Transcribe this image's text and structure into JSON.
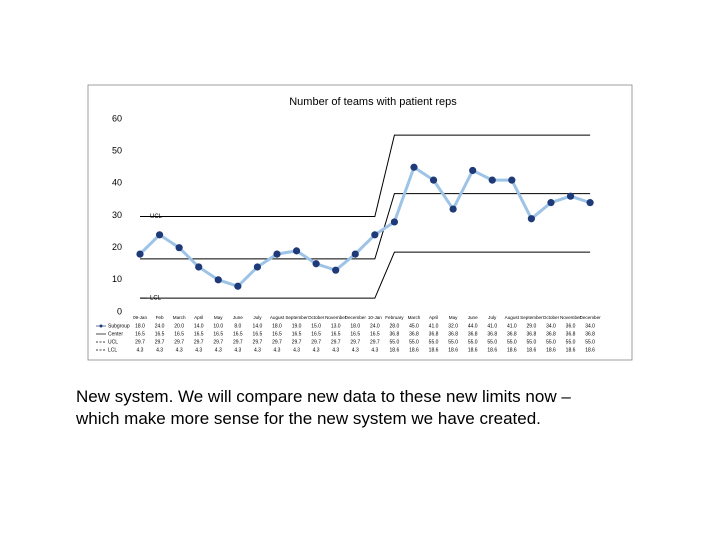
{
  "chart_data": {
    "type": "line",
    "title": "Number of teams with patient reps",
    "categories": [
      "09-Jan",
      "Feb",
      "March",
      "April",
      "May",
      "June",
      "July",
      "August",
      "September",
      "October",
      "November",
      "December",
      "10-Jan",
      "February",
      "March",
      "April",
      "May",
      "June",
      "July",
      "August",
      "September",
      "October",
      "November",
      "December"
    ],
    "series": [
      {
        "name": "Subgroup",
        "color": "#9dc3e6",
        "marker_color": "#1f3a78",
        "values": [
          18,
          24,
          20,
          14,
          10,
          8,
          14,
          18,
          19,
          15,
          13,
          18,
          24,
          28,
          45,
          41,
          32,
          44,
          41,
          41,
          29,
          34,
          36,
          34
        ],
        "value_labels": [
          "18.0",
          "24.0",
          "20.0",
          "14.0",
          "10.0",
          "8.0",
          "14.0",
          "18.0",
          "19.0",
          "15.0",
          "13.0",
          "18.0",
          "24.0",
          "28.0",
          "45.0",
          "41.0",
          "32.0",
          "44.0",
          "41.0",
          "41.0",
          "29.0",
          "34.0",
          "36.0",
          "34.0"
        ]
      },
      {
        "name": "Center",
        "color": "#000000",
        "values": [
          16.5,
          16.5,
          16.5,
          16.5,
          16.5,
          16.5,
          16.5,
          16.5,
          16.5,
          16.5,
          16.5,
          16.5,
          16.5,
          36.8,
          36.8,
          36.8,
          36.8,
          36.8,
          36.8,
          36.8,
          36.8,
          36.8,
          36.8,
          36.8
        ],
        "value_labels": [
          "16.5",
          "16.5",
          "16.5",
          "16.5",
          "16.5",
          "16.5",
          "16.5",
          "16.5",
          "16.5",
          "16.5",
          "16.5",
          "16.5",
          "16.5",
          "36.8",
          "36.8",
          "36.8",
          "36.8",
          "36.8",
          "36.8",
          "36.8",
          "36.8",
          "36.8",
          "36.8",
          "36.8"
        ]
      },
      {
        "name": "UCL",
        "color": "#000000",
        "values": [
          29.7,
          29.7,
          29.7,
          29.7,
          29.7,
          29.7,
          29.7,
          29.7,
          29.7,
          29.7,
          29.7,
          29.7,
          29.7,
          55,
          55,
          55,
          55,
          55,
          55,
          55,
          55,
          55,
          55,
          55
        ],
        "value_labels": [
          "29.7",
          "29.7",
          "29.7",
          "29.7",
          "29.7",
          "29.7",
          "29.7",
          "29.7",
          "29.7",
          "29.7",
          "29.7",
          "29.7",
          "29.7",
          "55.0",
          "55.0",
          "55.0",
          "55.0",
          "55.0",
          "55.0",
          "55.0",
          "55.0",
          "55.0",
          "55.0",
          "55.0"
        ]
      },
      {
        "name": "LCL",
        "color": "#000000",
        "values": [
          4.3,
          4.3,
          4.3,
          4.3,
          4.3,
          4.3,
          4.3,
          4.3,
          4.3,
          4.3,
          4.3,
          4.3,
          4.3,
          18.6,
          18.6,
          18.6,
          18.6,
          18.6,
          18.6,
          18.6,
          18.6,
          18.6,
          18.6,
          18.6
        ],
        "value_labels": [
          "4.3",
          "4.3",
          "4.3",
          "4.3",
          "4.3",
          "4.3",
          "4.3",
          "4.3",
          "4.3",
          "4.3",
          "4.3",
          "4.3",
          "4.3",
          "18.6",
          "18.6",
          "18.6",
          "18.6",
          "18.6",
          "18.6",
          "18.6",
          "18.6",
          "18.6",
          "18.6",
          "18.6"
        ]
      }
    ],
    "ylim": [
      0,
      60
    ],
    "yticks": [
      0,
      10,
      20,
      30,
      40,
      50,
      60
    ]
  },
  "caption": "New system. We will compare new data to these new limits now – which make more sense for the new system we have created."
}
